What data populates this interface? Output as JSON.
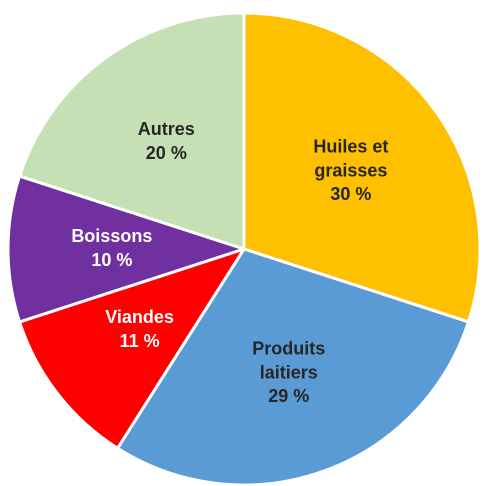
{
  "chart_data": {
    "type": "pie",
    "categories": [
      "Huiles et graisses",
      "Produits laitiers",
      "Viandes",
      "Boissons",
      "Autres"
    ],
    "values": [
      30,
      29,
      11,
      10,
      20
    ],
    "value_labels": [
      "30 %",
      "29 %",
      "11 %",
      "10 %",
      "20 %"
    ],
    "colors": [
      "#ffc000",
      "#5b9bd5",
      "#ff0000",
      "#7030a0",
      "#c5e0b4"
    ]
  }
}
